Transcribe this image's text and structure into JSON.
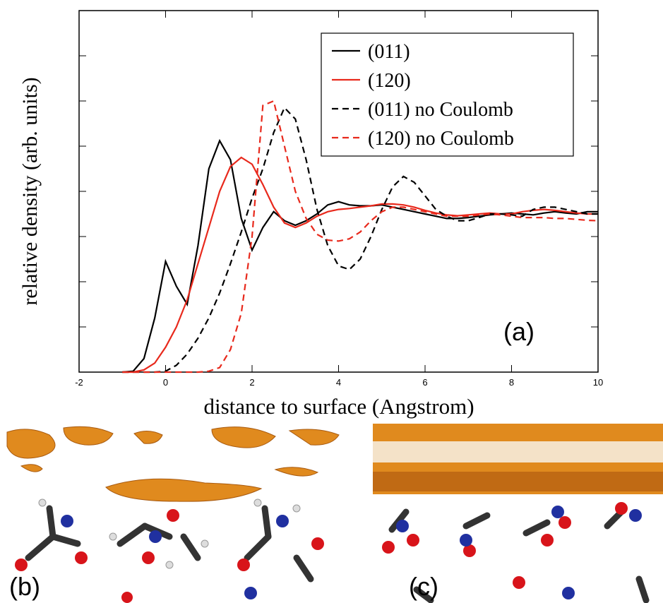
{
  "chart_data": {
    "type": "line",
    "xlabel": "distance to surface (Angstrom)",
    "ylabel": "relative density (arb. units)",
    "annotation": "(a)",
    "x": [
      -1,
      -0.75,
      -0.5,
      -0.25,
      0,
      0.25,
      0.5,
      0.75,
      1,
      1.25,
      1.5,
      1.75,
      2,
      2.25,
      2.5,
      2.75,
      3,
      3.25,
      3.5,
      3.75,
      4,
      4.25,
      4.5,
      4.75,
      5,
      5.25,
      5.5,
      5.75,
      6,
      6.25,
      6.5,
      6.75,
      7,
      7.25,
      7.5,
      7.75,
      8,
      8.25,
      8.5,
      8.75,
      9,
      9.25,
      9.5,
      9.75,
      10
    ],
    "series": [
      {
        "name": "(011)",
        "color": "#000000",
        "linestyle": "solid",
        "values": [
          0,
          0.02,
          0.3,
          1.2,
          2.45,
          1.9,
          1.5,
          2.8,
          4.5,
          5.12,
          4.7,
          3.4,
          2.7,
          3.2,
          3.55,
          3.35,
          3.25,
          3.35,
          3.5,
          3.7,
          3.77,
          3.7,
          3.68,
          3.68,
          3.7,
          3.65,
          3.6,
          3.55,
          3.5,
          3.45,
          3.4,
          3.4,
          3.42,
          3.45,
          3.48,
          3.5,
          3.52,
          3.5,
          3.48,
          3.52,
          3.55,
          3.52,
          3.5,
          3.55,
          3.55
        ]
      },
      {
        "name": "(120)",
        "color": "#e8291c",
        "linestyle": "solid",
        "values": [
          0,
          0,
          0.05,
          0.2,
          0.55,
          1.0,
          1.6,
          2.4,
          3.2,
          4.0,
          4.55,
          4.75,
          4.6,
          4.15,
          3.65,
          3.3,
          3.2,
          3.3,
          3.45,
          3.55,
          3.6,
          3.62,
          3.65,
          3.68,
          3.72,
          3.72,
          3.7,
          3.65,
          3.58,
          3.52,
          3.48,
          3.46,
          3.48,
          3.5,
          3.52,
          3.5,
          3.5,
          3.55,
          3.58,
          3.6,
          3.58,
          3.55,
          3.52,
          3.5,
          3.5
        ]
      },
      {
        "name": "(011) no Coulomb",
        "color": "#000000",
        "linestyle": "dashed",
        "values": [
          0,
          0,
          0,
          0,
          0.02,
          0.15,
          0.4,
          0.75,
          1.2,
          1.75,
          2.4,
          3.1,
          3.85,
          4.5,
          5.3,
          5.85,
          5.6,
          4.7,
          3.6,
          2.8,
          2.35,
          2.27,
          2.5,
          3.0,
          3.6,
          4.1,
          4.33,
          4.2,
          3.9,
          3.6,
          3.45,
          3.35,
          3.35,
          3.42,
          3.5,
          3.5,
          3.48,
          3.45,
          3.6,
          3.65,
          3.65,
          3.6,
          3.55,
          3.5,
          3.5
        ]
      },
      {
        "name": "(120) no Coulomb",
        "color": "#e8291c",
        "linestyle": "dashed",
        "values": [
          0,
          0,
          0,
          0,
          0,
          0,
          0,
          0,
          0.02,
          0.1,
          0.5,
          1.3,
          3.0,
          5.9,
          6.0,
          5.0,
          4.0,
          3.4,
          3.05,
          2.92,
          2.9,
          2.95,
          3.1,
          3.35,
          3.55,
          3.65,
          3.65,
          3.6,
          3.55,
          3.5,
          3.45,
          3.45,
          3.45,
          3.48,
          3.5,
          3.48,
          3.45,
          3.42,
          3.42,
          3.42,
          3.4,
          3.4,
          3.38,
          3.36,
          3.35
        ]
      }
    ],
    "xlim": [
      -2,
      10
    ],
    "xticks": [
      -2,
      0,
      2,
      4,
      6,
      8,
      10
    ],
    "ylim": [
      0,
      8
    ],
    "yticks": [
      1,
      2,
      3,
      4,
      5,
      6,
      7
    ],
    "grid": false,
    "legend": "upper right"
  },
  "panels": {
    "b": "(b)",
    "c": "(c)"
  }
}
